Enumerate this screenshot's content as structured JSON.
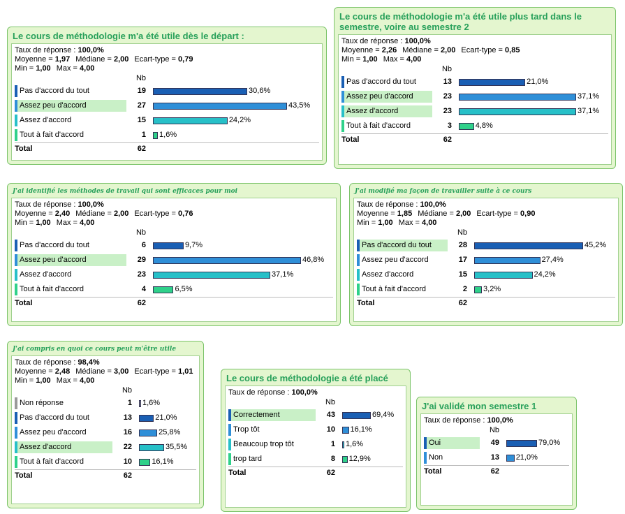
{
  "panels": [
    {
      "title": "Le cours de méthodologie m'a été utile dès le départ :",
      "stats": [
        [
          {
            "label": "Taux de réponse :",
            "value": "100,0%"
          }
        ],
        [
          {
            "label": "Moyenne =",
            "value": "1,97"
          },
          {
            "label": "Médiane =",
            "value": "2,00"
          },
          {
            "label": "Ecart-type =",
            "value": "0,79"
          }
        ],
        [
          {
            "label": "Min =",
            "value": "1,00"
          },
          {
            "label": "Max =",
            "value": "4,00"
          }
        ]
      ],
      "header": "Nb",
      "rows": [
        {
          "label": "Pas d'accord du tout",
          "count": 19,
          "pct": 30.6,
          "pct_label": "30,6%",
          "color": "#1a5fb4"
        },
        {
          "label": "Assez peu d'accord",
          "count": 27,
          "pct": 43.5,
          "pct_label": "43,5%",
          "color": "#2f8fd8"
        },
        {
          "label": "Assez d'accord",
          "count": 15,
          "pct": 24.2,
          "pct_label": "24,2%",
          "color": "#27c0c8"
        },
        {
          "label": "Tout à fait d'accord",
          "count": 1,
          "pct": 1.6,
          "pct_label": "1,6%",
          "color": "#2fd18a"
        }
      ],
      "total_label": "Total",
      "total": 62
    },
    {
      "title": "Le cours de méthodologie m'a été utile plus tard dans le semestre, voire au semestre 2",
      "stats": [
        [
          {
            "label": "Taux de réponse :",
            "value": "100,0%"
          }
        ],
        [
          {
            "label": "Moyenne =",
            "value": "2,26"
          },
          {
            "label": "Médiane =",
            "value": "2,00"
          },
          {
            "label": "Ecart-type =",
            "value": "0,85"
          }
        ],
        [
          {
            "label": "Min =",
            "value": "1,00"
          },
          {
            "label": "Max =",
            "value": "4,00"
          }
        ]
      ],
      "header": "Nb",
      "rows": [
        {
          "label": "Pas d'accord du tout",
          "count": 13,
          "pct": 21.0,
          "pct_label": "21,0%",
          "color": "#1a5fb4"
        },
        {
          "label": "Assez peu d'accord",
          "count": 23,
          "pct": 37.1,
          "pct_label": "37,1%",
          "color": "#2f8fd8"
        },
        {
          "label": "Assez d'accord",
          "count": 23,
          "pct": 37.1,
          "pct_label": "37,1%",
          "color": "#27c0c8"
        },
        {
          "label": "Tout à fait d'accord",
          "count": 3,
          "pct": 4.8,
          "pct_label": "4,8%",
          "color": "#2fd18a"
        }
      ],
      "total_label": "Total",
      "total": 62
    },
    {
      "title": "J'ai identifié les méthodes de travail qui sont efficaces pour moi",
      "stats": [
        [
          {
            "label": "Taux de réponse :",
            "value": "100,0%"
          }
        ],
        [
          {
            "label": "Moyenne =",
            "value": "2,40"
          },
          {
            "label": "Médiane =",
            "value": "2,00"
          },
          {
            "label": "Ecart-type =",
            "value": "0,76"
          }
        ],
        [
          {
            "label": "Min =",
            "value": "1,00"
          },
          {
            "label": "Max =",
            "value": "4,00"
          }
        ]
      ],
      "header": "Nb",
      "rows": [
        {
          "label": "Pas d'accord du tout",
          "count": 6,
          "pct": 9.7,
          "pct_label": "9,7%",
          "color": "#1a5fb4"
        },
        {
          "label": "Assez peu d'accord",
          "count": 29,
          "pct": 46.8,
          "pct_label": "46,8%",
          "color": "#2f8fd8"
        },
        {
          "label": "Assez d'accord",
          "count": 23,
          "pct": 37.1,
          "pct_label": "37,1%",
          "color": "#27c0c8"
        },
        {
          "label": "Tout à fait d'accord",
          "count": 4,
          "pct": 6.5,
          "pct_label": "6,5%",
          "color": "#2fd18a"
        }
      ],
      "total_label": "Total",
      "total": 62
    },
    {
      "title": "J'ai modifié ma façon de travailler suite à ce cours",
      "stats": [
        [
          {
            "label": "Taux de réponse :",
            "value": "100,0%"
          }
        ],
        [
          {
            "label": "Moyenne =",
            "value": "1,85"
          },
          {
            "label": "Médiane =",
            "value": "2,00"
          },
          {
            "label": "Ecart-type =",
            "value": "0,90"
          }
        ],
        [
          {
            "label": "Min =",
            "value": "1,00"
          },
          {
            "label": "Max =",
            "value": "4,00"
          }
        ]
      ],
      "header": "Nb",
      "rows": [
        {
          "label": "Pas d'accord du tout",
          "count": 28,
          "pct": 45.2,
          "pct_label": "45,2%",
          "color": "#1a5fb4"
        },
        {
          "label": "Assez peu d'accord",
          "count": 17,
          "pct": 27.4,
          "pct_label": "27,4%",
          "color": "#2f8fd8"
        },
        {
          "label": "Assez d'accord",
          "count": 15,
          "pct": 24.2,
          "pct_label": "24,2%",
          "color": "#27c0c8"
        },
        {
          "label": "Tout à fait d'accord",
          "count": 2,
          "pct": 3.2,
          "pct_label": "3,2%",
          "color": "#2fd18a"
        }
      ],
      "total_label": "Total",
      "total": 62
    },
    {
      "title": "J'ai compris en quoi ce cours peut m'être utile",
      "stats": [
        [
          {
            "label": "Taux de réponse :",
            "value": "98,4%"
          }
        ],
        [
          {
            "label": "Moyenne =",
            "value": "2,48"
          },
          {
            "label": "Médiane =",
            "value": "3,00"
          },
          {
            "label": "Ecart-type =",
            "value": "1,01"
          }
        ],
        [
          {
            "label": "Min =",
            "value": "1,00"
          },
          {
            "label": "Max =",
            "value": "4,00"
          }
        ]
      ],
      "header": "Nb",
      "rows": [
        {
          "label": "Non réponse",
          "count": 1,
          "pct": 1.6,
          "pct_label": "1,6%",
          "color": "#999999"
        },
        {
          "label": "Pas d'accord du tout",
          "count": 13,
          "pct": 21.0,
          "pct_label": "21,0%",
          "color": "#1a5fb4"
        },
        {
          "label": "Assez peu d'accord",
          "count": 16,
          "pct": 25.8,
          "pct_label": "25,8%",
          "color": "#2f8fd8"
        },
        {
          "label": "Assez d'accord",
          "count": 22,
          "pct": 35.5,
          "pct_label": "35,5%",
          "color": "#27c0c8"
        },
        {
          "label": "Tout à fait d'accord",
          "count": 10,
          "pct": 16.1,
          "pct_label": "16,1%",
          "color": "#2fd18a"
        }
      ],
      "total_label": "Total",
      "total": 62
    },
    {
      "title": "Le cours de méthodologie a été placé",
      "stats": [
        [
          {
            "label": "Taux de réponse :",
            "value": "100,0%"
          }
        ]
      ],
      "header": "Nb",
      "rows": [
        {
          "label": "Correctement",
          "count": 43,
          "pct": 69.4,
          "pct_label": "69,4%",
          "color": "#1a5fb4"
        },
        {
          "label": "Trop tôt",
          "count": 10,
          "pct": 16.1,
          "pct_label": "16,1%",
          "color": "#2f8fd8"
        },
        {
          "label": "Beaucoup trop tôt",
          "count": 1,
          "pct": 1.6,
          "pct_label": "1,6%",
          "color": "#27c0c8"
        },
        {
          "label": "trop tard",
          "count": 8,
          "pct": 12.9,
          "pct_label": "12,9%",
          "color": "#2fd18a"
        }
      ],
      "total_label": "Total",
      "total": 62
    },
    {
      "title": "J'ai validé mon semestre 1",
      "stats": [
        [
          {
            "label": "Taux de réponse :",
            "value": "100,0%"
          }
        ]
      ],
      "header": "Nb",
      "rows": [
        {
          "label": "Oui",
          "count": 49,
          "pct": 79.0,
          "pct_label": "79,0%",
          "color": "#1a5fb4"
        },
        {
          "label": "Non",
          "count": 13,
          "pct": 21.0,
          "pct_label": "21,0%",
          "color": "#2f8fd8"
        }
      ],
      "total_label": "Total",
      "total": 62
    }
  ]
}
